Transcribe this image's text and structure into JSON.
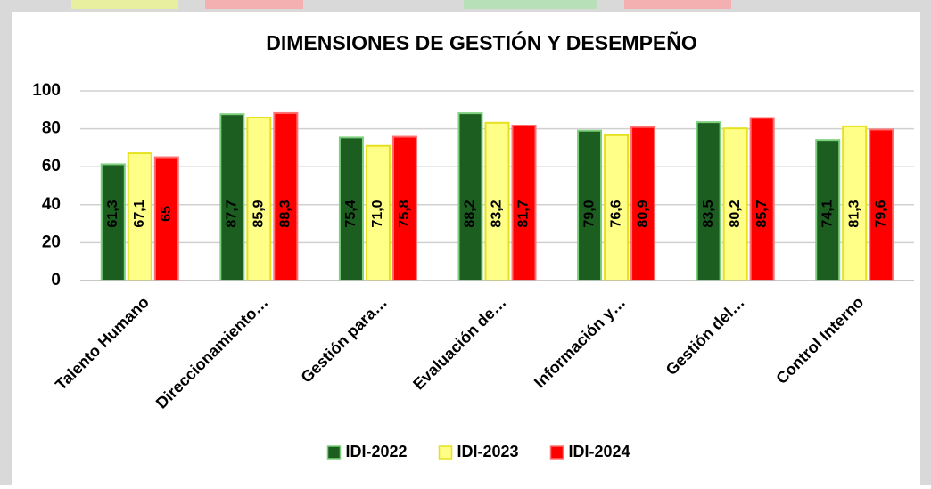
{
  "chart_data": {
    "type": "bar",
    "title": "DIMENSIONES DE GESTIÓN Y DESEMPEÑO",
    "categories": [
      "Talento Humano",
      "Direccionamiento…",
      "Gestión para…",
      "Evaluación de…",
      "Información y…",
      "Gestión del…",
      "Control Interno"
    ],
    "series": [
      {
        "name": "IDI-2022",
        "color": "#1b5e20",
        "stroke": "#7ccf7c",
        "values": [
          61.3,
          87.7,
          75.4,
          88.2,
          79.0,
          83.5,
          74.1
        ],
        "value_labels": [
          "61,3",
          "87,7",
          "75,4",
          "88,2",
          "79,0",
          "83,5",
          "74,1"
        ]
      },
      {
        "name": "IDI-2023",
        "color": "#ffff88",
        "stroke": "#e6e020",
        "values": [
          67.1,
          85.9,
          71.0,
          83.2,
          76.6,
          80.2,
          81.3
        ],
        "value_labels": [
          "67,1",
          "85,9",
          "71,0",
          "83,2",
          "76,6",
          "80,2",
          "81,3"
        ]
      },
      {
        "name": "IDI-2024",
        "color": "#ff0000",
        "stroke": "#ff7070",
        "values": [
          65,
          88.3,
          75.8,
          81.7,
          80.9,
          85.7,
          79.6
        ],
        "value_labels": [
          "65",
          "88,3",
          "75,8",
          "81,7",
          "80,9",
          "85,7",
          "79,6"
        ]
      }
    ],
    "ylim": [
      0,
      100
    ],
    "yticks": [
      0,
      20,
      40,
      60,
      80,
      100
    ],
    "grid": true,
    "legend": "bottom"
  }
}
